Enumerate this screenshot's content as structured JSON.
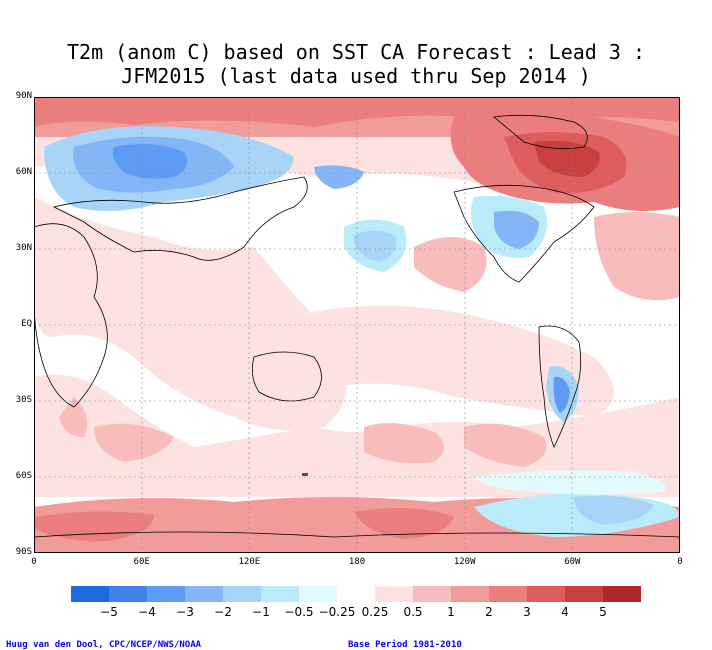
{
  "title_line1": "T2m (anom C) based on SST CA Forecast : Lead 3 :",
  "title_line2": "JFM2015 (last data used thru Sep 2014 )",
  "lat_labels": [
    "90N",
    "60N",
    "30N",
    "EQ",
    "30S",
    "60S",
    "90S"
  ],
  "lon_labels": [
    "0",
    "60E",
    "120E",
    "180",
    "120W",
    "60W",
    "0"
  ],
  "colorbar": {
    "colors": [
      "#1f6ae0",
      "#3c83ee",
      "#5e9bf5",
      "#84b6f7",
      "#a8d4f8",
      "#b9ecf8",
      "#e3fbfd",
      "#ffffff",
      "#fde2e2",
      "#f8bcbc",
      "#f29b9b",
      "#ea7e7e",
      "#dd5d5d",
      "#c94040",
      "#b02828"
    ],
    "labels": [
      "−5",
      "−4",
      "−3",
      "−2",
      "−1",
      "−0.5",
      "−0.25",
      "0.25",
      "0.5",
      "1",
      "2",
      "3",
      "4",
      "5"
    ]
  },
  "credit_left": "Huug van den Dool, CPC/NCEP/NWS/NOAA",
  "credit_right": "Base Period 1981-2010"
}
